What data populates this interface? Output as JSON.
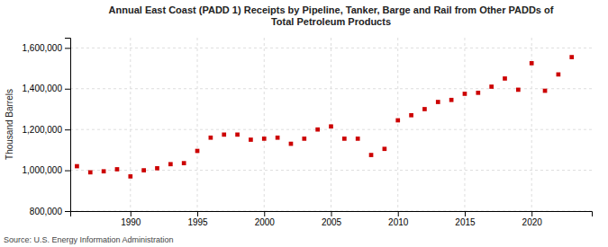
{
  "chart_data": {
    "type": "scatter",
    "title": "Annual East Coast (PADD 1) Receipts by Pipeline, Tanker, Barge and Rail from Other PADDs of\nTotal Petroleum Products",
    "ylabel": "Thousand Barrels",
    "annotations": [
      "Source: U.S. Energy Information Administration"
    ],
    "x": [
      1986,
      1987,
      1988,
      1989,
      1990,
      1991,
      1992,
      1993,
      1994,
      1995,
      1996,
      1997,
      1998,
      1999,
      2000,
      2001,
      2002,
      2003,
      2004,
      2005,
      2006,
      2007,
      2008,
      2009,
      2010,
      2011,
      2012,
      2013,
      2014,
      2015,
      2016,
      2017,
      2018,
      2019,
      2020,
      2021,
      2022,
      2023
    ],
    "values": [
      1020000,
      990000,
      995000,
      1005000,
      970000,
      1000000,
      1010000,
      1030000,
      1035000,
      1095000,
      1160000,
      1175000,
      1175000,
      1150000,
      1155000,
      1160000,
      1130000,
      1155000,
      1200000,
      1215000,
      1155000,
      1155000,
      1075000,
      1105000,
      1245000,
      1270000,
      1300000,
      1335000,
      1345000,
      1375000,
      1380000,
      1410000,
      1450000,
      1395000,
      1525000,
      1390000,
      1470000,
      1555000
    ],
    "color": "#cc0000",
    "marker": "square",
    "xlim": [
      1985.5,
      2024.5
    ],
    "xticks": [
      1990,
      1995,
      2000,
      2005,
      2010,
      2015,
      2020
    ],
    "ylim": [
      800000,
      1650000
    ],
    "yticks": [
      {
        "value": 800000,
        "label": "800,000"
      },
      {
        "value": 1000000,
        "label": "1,000,000"
      },
      {
        "value": 1200000,
        "label": "1,200,000"
      },
      {
        "value": 1400000,
        "label": "1,400,000"
      },
      {
        "value": 1600000,
        "label": "1,600,000"
      }
    ],
    "grid": true
  }
}
